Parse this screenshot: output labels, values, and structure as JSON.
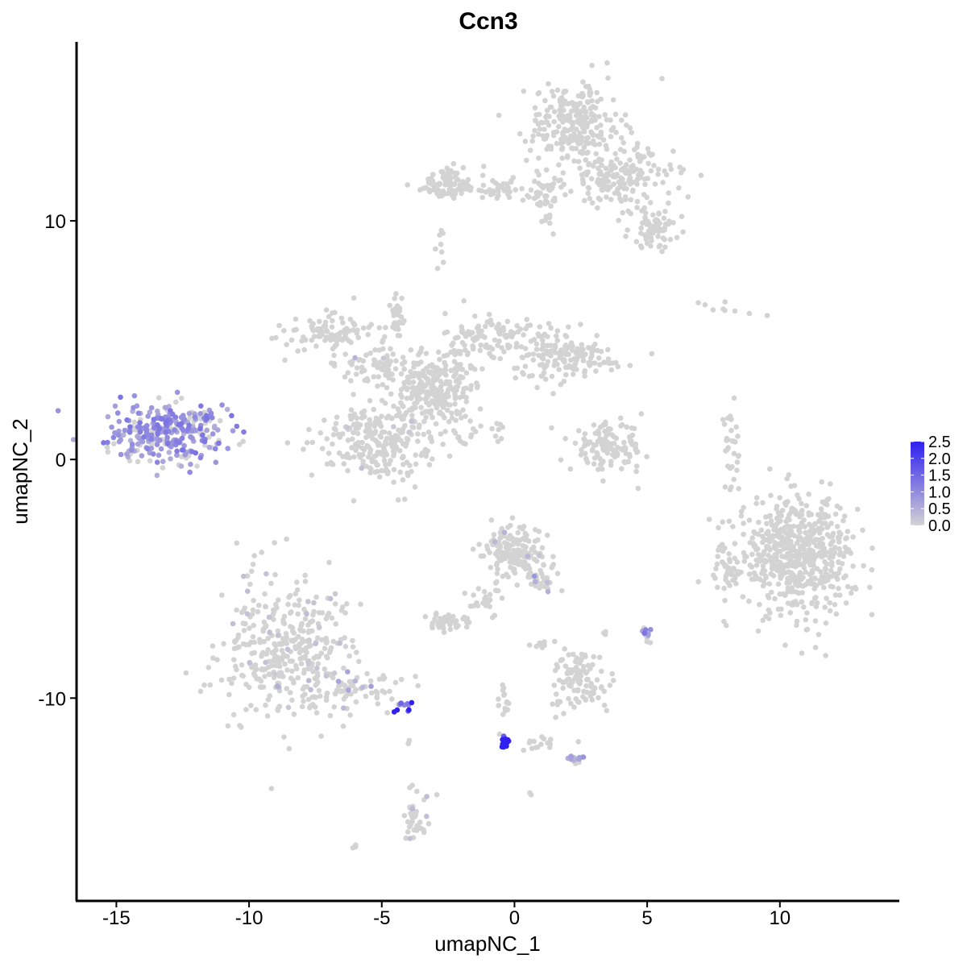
{
  "chart_data": {
    "type": "scatter",
    "title": "Ccn3",
    "xlabel": "umapNC_1",
    "ylabel": "umapNC_2",
    "xlim": [
      -16.5,
      14.5
    ],
    "ylim": [
      -18.5,
      17.5
    ],
    "xticks": [
      -15,
      -10,
      -5,
      0,
      5,
      10
    ],
    "xtick_labels": [
      "-15",
      "-10",
      "-5",
      "0",
      "5",
      "10"
    ],
    "yticks": [
      -10,
      0,
      10
    ],
    "ytick_labels": [
      "-10",
      "0",
      "10"
    ],
    "grid": false,
    "legend": {
      "type": "colorbar",
      "placement": "right",
      "ticks": [
        0.0,
        0.5,
        1.0,
        1.5,
        2.0,
        2.5
      ],
      "tick_labels": [
        "0.0",
        "0.5",
        "1.0",
        "1.5",
        "2.0",
        "2.5"
      ],
      "range": [
        0,
        2.5
      ]
    },
    "colors": {
      "low": "#d3d3d3",
      "high": "#2f1ff0"
    },
    "point_radius_data": 0.12,
    "clusters": [
      {
        "cx": -13.0,
        "cy": 1.2,
        "sx": 1.0,
        "sy": 0.6,
        "n": 320,
        "expr": 0.9,
        "frac": 0.75
      },
      {
        "cx": -8.5,
        "cy": -8.0,
        "sx": 1.3,
        "sy": 1.5,
        "n": 380,
        "expr": 0.2,
        "frac": 0.06
      },
      {
        "cx": -5.8,
        "cy": -9.6,
        "sx": 1.0,
        "sy": 0.4,
        "n": 70,
        "expr": 0.5,
        "frac": 0.15
      },
      {
        "cx": -4.2,
        "cy": -10.3,
        "sx": 0.2,
        "sy": 0.15,
        "n": 10,
        "expr": 2.0,
        "frac": 1.0
      },
      {
        "cx": -3.7,
        "cy": -14.9,
        "sx": 0.25,
        "sy": 0.6,
        "n": 40,
        "expr": 0.4,
        "frac": 0.12
      },
      {
        "cx": -6.0,
        "cy": -16.2,
        "sx": 0.05,
        "sy": 0.05,
        "n": 3,
        "expr": 0,
        "frac": 0
      },
      {
        "cx": -4.0,
        "cy": -11.9,
        "sx": 0.05,
        "sy": 0.1,
        "n": 3,
        "expr": 0,
        "frac": 0
      },
      {
        "cx": -3.0,
        "cy": 3.0,
        "sx": 0.8,
        "sy": 0.7,
        "n": 220,
        "expr": 0,
        "frac": 0
      },
      {
        "cx": -7.0,
        "cy": 5.2,
        "sx": 0.8,
        "sy": 0.4,
        "n": 90,
        "expr": 0,
        "frac": 0
      },
      {
        "cx": -5.2,
        "cy": 4.0,
        "sx": 0.7,
        "sy": 0.4,
        "n": 70,
        "expr": 0.3,
        "frac": 0.03
      },
      {
        "cx": -5.0,
        "cy": 0.7,
        "sx": 1.2,
        "sy": 0.8,
        "n": 260,
        "expr": 0.2,
        "frac": 0.02
      },
      {
        "cx": -4.4,
        "cy": 6.0,
        "sx": 0.15,
        "sy": 0.7,
        "n": 30,
        "expr": 0,
        "frac": 0
      },
      {
        "cx": -1.0,
        "cy": 5.0,
        "sx": 0.8,
        "sy": 0.6,
        "n": 110,
        "expr": 0,
        "frac": 0
      },
      {
        "cx": 1.4,
        "cy": 4.5,
        "sx": 0.7,
        "sy": 0.6,
        "n": 90,
        "expr": 0,
        "frac": 0
      },
      {
        "cx": 2.4,
        "cy": 4.2,
        "sx": 1.0,
        "sy": 0.4,
        "n": 70,
        "expr": 0,
        "frac": 0
      },
      {
        "cx": -1.5,
        "cy": 1.2,
        "sx": 0.8,
        "sy": 0.25,
        "n": 25,
        "expr": 0,
        "frac": 0
      },
      {
        "cx": 2.3,
        "cy": 14.0,
        "sx": 0.9,
        "sy": 0.9,
        "n": 260,
        "expr": 0,
        "frac": 0
      },
      {
        "cx": 4.0,
        "cy": 11.8,
        "sx": 1.0,
        "sy": 0.6,
        "n": 170,
        "expr": 0,
        "frac": 0
      },
      {
        "cx": 5.3,
        "cy": 9.7,
        "sx": 0.5,
        "sy": 0.4,
        "n": 70,
        "expr": 0,
        "frac": 0
      },
      {
        "cx": -2.5,
        "cy": 11.5,
        "sx": 0.7,
        "sy": 0.35,
        "n": 90,
        "expr": 0,
        "frac": 0
      },
      {
        "cx": -0.2,
        "cy": 11.3,
        "sx": 0.9,
        "sy": 0.2,
        "n": 40,
        "expr": 0,
        "frac": 0
      },
      {
        "cx": 1.2,
        "cy": 11.0,
        "sx": 0.3,
        "sy": 0.5,
        "n": 40,
        "expr": 0,
        "frac": 0
      },
      {
        "cx": -2.8,
        "cy": 8.8,
        "sx": 0.12,
        "sy": 0.3,
        "n": 8,
        "expr": 0,
        "frac": 0
      },
      {
        "cx": 3.5,
        "cy": 0.5,
        "sx": 0.7,
        "sy": 0.5,
        "n": 130,
        "expr": 0,
        "frac": 0
      },
      {
        "cx": 8.2,
        "cy": 0.2,
        "sx": 0.2,
        "sy": 0.8,
        "n": 30,
        "expr": 0,
        "frac": 0
      },
      {
        "cx": 10.6,
        "cy": -4.0,
        "sx": 1.1,
        "sy": 1.2,
        "n": 600,
        "expr": 0,
        "frac": 0
      },
      {
        "cx": 8.0,
        "cy": -4.5,
        "sx": 0.25,
        "sy": 0.5,
        "n": 25,
        "expr": 0,
        "frac": 0
      },
      {
        "cx": 8.6,
        "cy": 6.3,
        "sx": 0.8,
        "sy": 0.3,
        "n": 9,
        "expr": 0,
        "frac": 0
      },
      {
        "cx": 0.0,
        "cy": -3.8,
        "sx": 0.5,
        "sy": 0.5,
        "n": 160,
        "expr": 0.3,
        "frac": 0.02
      },
      {
        "cx": 1.0,
        "cy": -4.9,
        "sx": 0.3,
        "sy": 0.4,
        "n": 35,
        "expr": 0.6,
        "frac": 0.08
      },
      {
        "cx": -1.2,
        "cy": -6.0,
        "sx": 0.3,
        "sy": 0.4,
        "n": 25,
        "expr": 0,
        "frac": 0
      },
      {
        "cx": -2.5,
        "cy": -6.8,
        "sx": 0.35,
        "sy": 0.2,
        "n": 40,
        "expr": 0,
        "frac": 0
      },
      {
        "cx": 2.4,
        "cy": -9.2,
        "sx": 0.5,
        "sy": 0.6,
        "n": 110,
        "expr": 0,
        "frac": 0
      },
      {
        "cx": 3.4,
        "cy": -7.3,
        "sx": 0.05,
        "sy": 0.15,
        "n": 3,
        "expr": 0,
        "frac": 0
      },
      {
        "cx": 5.0,
        "cy": -7.3,
        "sx": 0.12,
        "sy": 0.15,
        "n": 14,
        "expr": 0.9,
        "frac": 0.6
      },
      {
        "cx": -0.3,
        "cy": -11.9,
        "sx": 0.12,
        "sy": 0.15,
        "n": 14,
        "expr": 2.2,
        "frac": 1.0
      },
      {
        "cx": -0.4,
        "cy": -10.4,
        "sx": 0.12,
        "sy": 0.5,
        "n": 15,
        "expr": 0,
        "frac": 0
      },
      {
        "cx": 1.2,
        "cy": -11.9,
        "sx": 0.5,
        "sy": 0.15,
        "n": 15,
        "expr": 0,
        "frac": 0
      },
      {
        "cx": 2.3,
        "cy": -12.5,
        "sx": 0.3,
        "sy": 0.12,
        "n": 14,
        "expr": 0.6,
        "frac": 0.5
      },
      {
        "cx": 0.6,
        "cy": -14.0,
        "sx": 0.05,
        "sy": 0.05,
        "n": 2,
        "expr": 0.6,
        "frac": 0.5
      },
      {
        "cx": 0.9,
        "cy": -7.7,
        "sx": 0.4,
        "sy": 0.1,
        "n": 8,
        "expr": 0,
        "frac": 0
      }
    ]
  }
}
